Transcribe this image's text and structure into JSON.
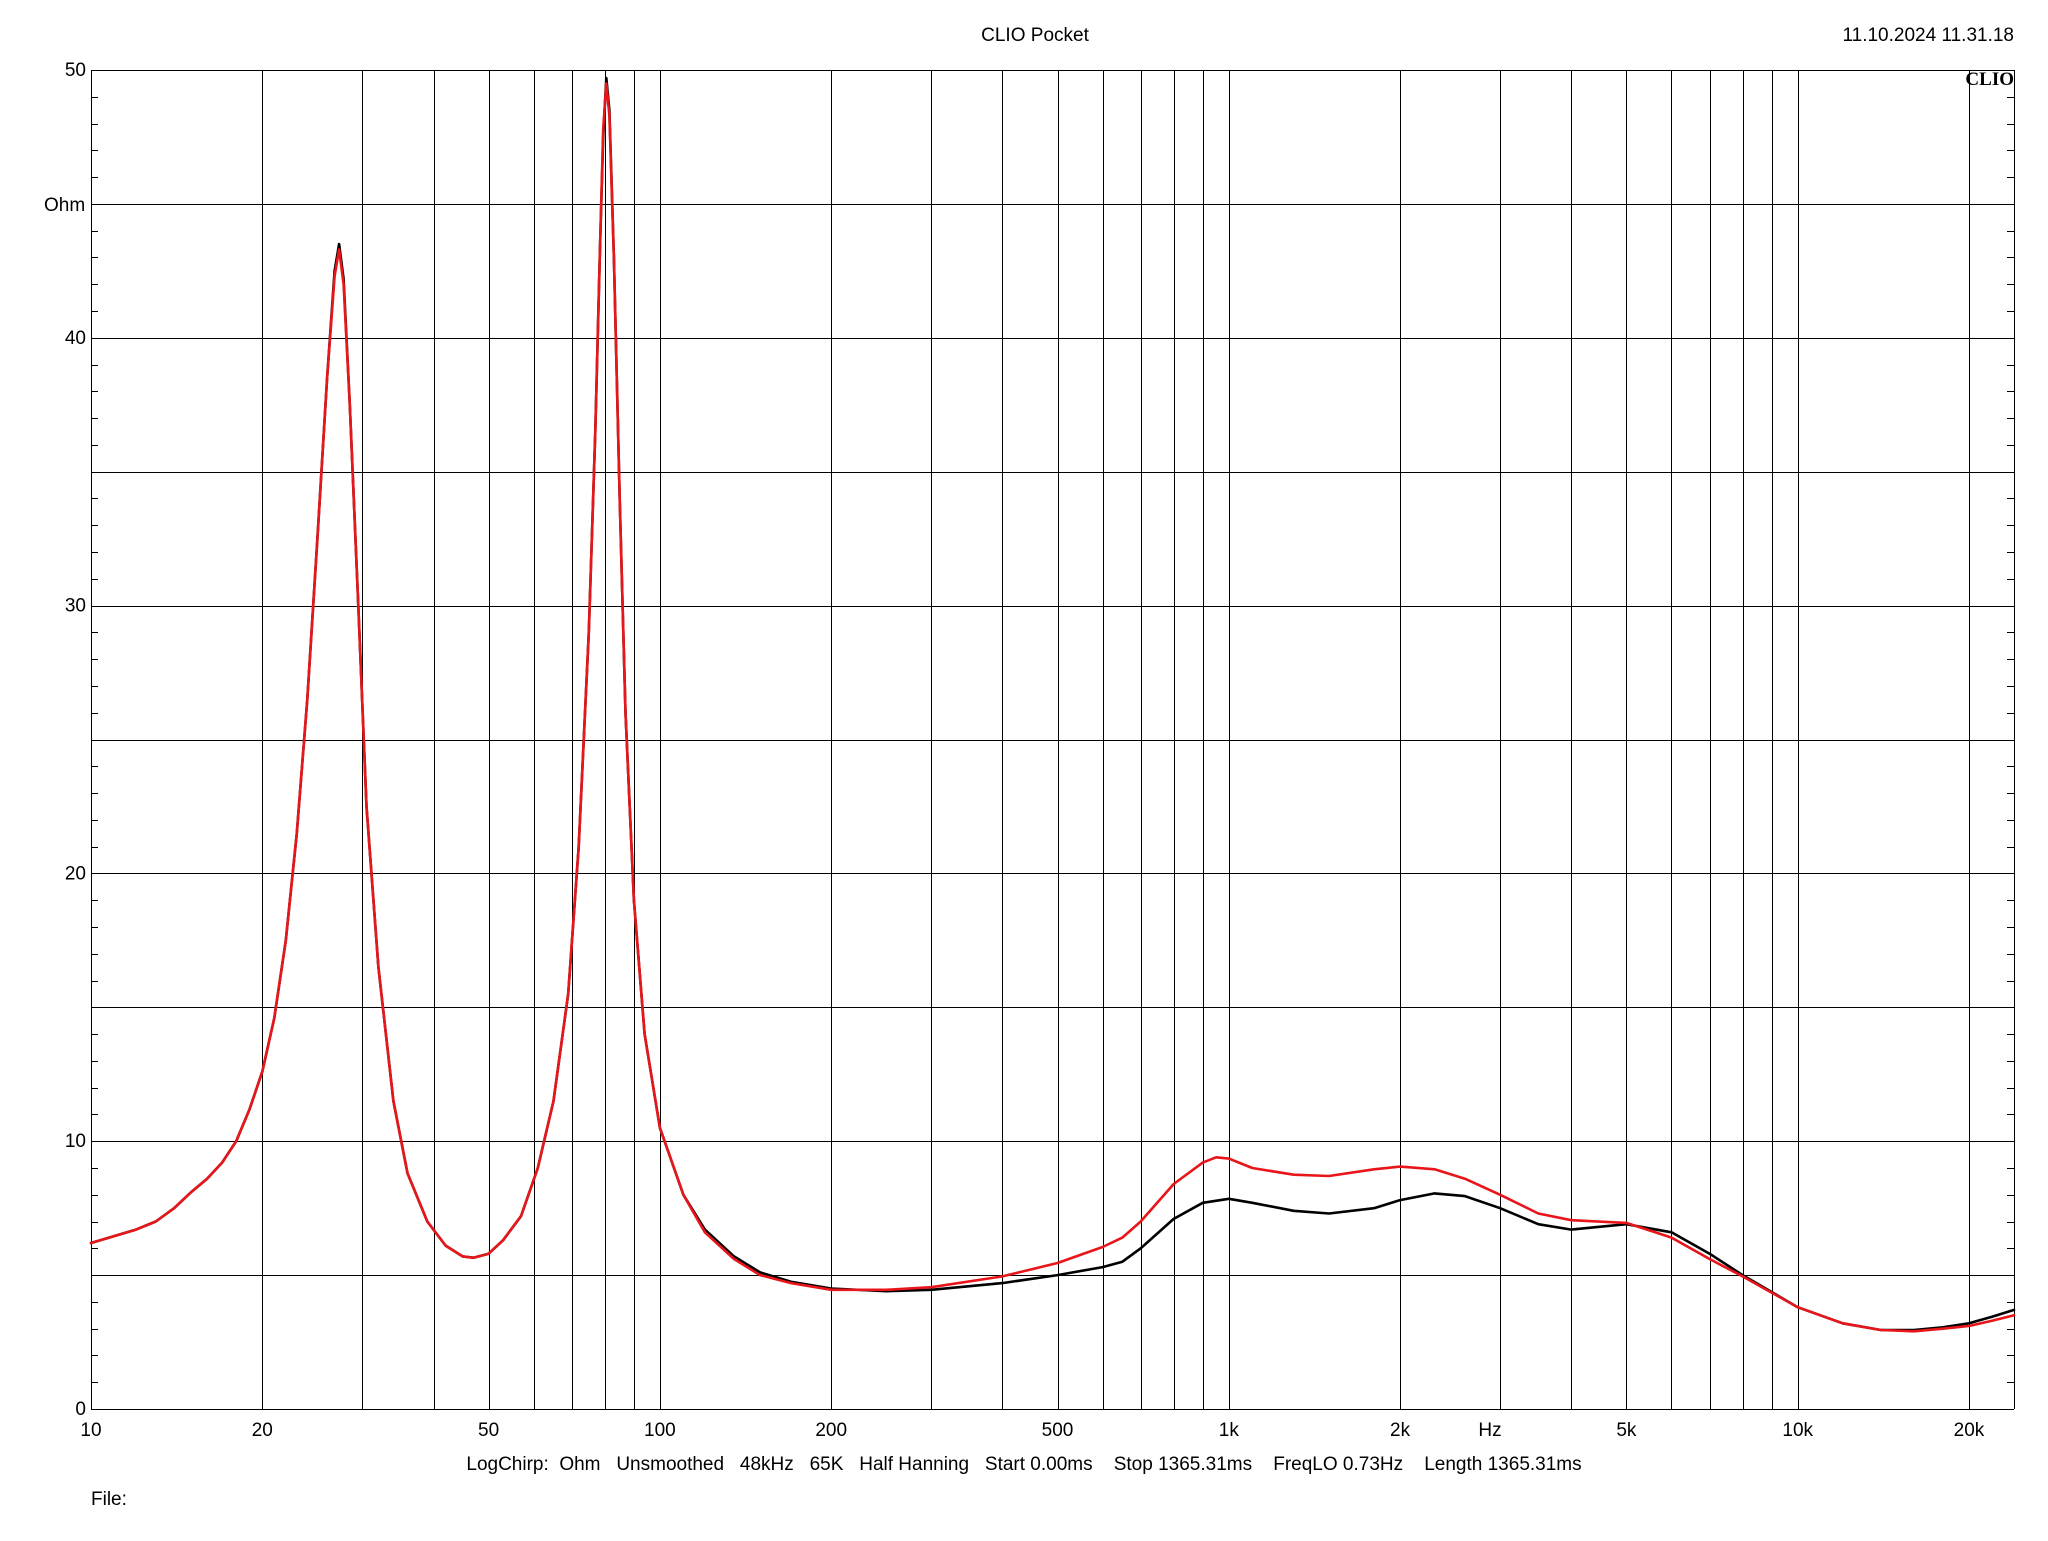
{
  "header": {
    "title": "CLIO Pocket",
    "timestamp": "11.10.2024 11.31.18",
    "brand": "CLIO"
  },
  "footer": {
    "info": "LogChirp:  Ohm   Unsmoothed   48kHz   65K   Half Hanning   Start 0.00ms    Stop 1365.31ms    FreqLO 0.73Hz    Length 1365.31ms",
    "file_label": "File:"
  },
  "colors": {
    "background": "#ffffff",
    "grid": "#000000",
    "series_black": "#000000",
    "series_red": "#e8161a"
  },
  "chart_data": {
    "type": "line",
    "title": "CLIO Pocket",
    "xlabel": "Hz",
    "ylabel": "Ohm",
    "x_scale": "log",
    "xlim": [
      10,
      24000
    ],
    "ylim": [
      0,
      50
    ],
    "grid": true,
    "x_ticks": [
      {
        "value": 10,
        "label": "10"
      },
      {
        "value": 20,
        "label": "20"
      },
      {
        "value": 50,
        "label": "50"
      },
      {
        "value": 100,
        "label": "100"
      },
      {
        "value": 200,
        "label": "200"
      },
      {
        "value": 500,
        "label": "500"
      },
      {
        "value": 1000,
        "label": "1k"
      },
      {
        "value": 2000,
        "label": "2k"
      },
      {
        "value": 5000,
        "label": "5k"
      },
      {
        "value": 10000,
        "label": "10k"
      },
      {
        "value": 20000,
        "label": "20k"
      }
    ],
    "y_ticks": [
      {
        "value": 0,
        "label": "0"
      },
      {
        "value": 10,
        "label": "10"
      },
      {
        "value": 20,
        "label": "20"
      },
      {
        "value": 30,
        "label": "30"
      },
      {
        "value": 40,
        "label": "40"
      },
      {
        "value": 50,
        "label": "50"
      }
    ],
    "series": [
      {
        "color": "#000000",
        "points": [
          [
            10,
            6.2
          ],
          [
            12,
            6.7
          ],
          [
            13,
            7.0
          ],
          [
            14,
            7.5
          ],
          [
            15,
            8.1
          ],
          [
            16,
            8.6
          ],
          [
            17,
            9.2
          ],
          [
            18,
            10.0
          ],
          [
            19,
            11.2
          ],
          [
            20,
            12.6
          ],
          [
            21,
            14.6
          ],
          [
            22,
            17.5
          ],
          [
            23,
            21.5
          ],
          [
            24,
            26.5
          ],
          [
            25,
            32.5
          ],
          [
            26,
            38.5
          ],
          [
            26.8,
            42.5
          ],
          [
            27.3,
            43.5
          ],
          [
            27.8,
            42.2
          ],
          [
            28.5,
            37.5
          ],
          [
            29.5,
            30
          ],
          [
            30.5,
            22.5
          ],
          [
            32,
            16.5
          ],
          [
            34,
            11.5
          ],
          [
            36,
            8.8
          ],
          [
            39,
            7.0
          ],
          [
            42,
            6.1
          ],
          [
            45,
            5.7
          ],
          [
            47,
            5.65
          ],
          [
            50,
            5.8
          ],
          [
            53,
            6.3
          ],
          [
            57,
            7.2
          ],
          [
            61,
            9.0
          ],
          [
            65,
            11.5
          ],
          [
            69,
            15.5
          ],
          [
            72,
            21
          ],
          [
            75,
            29
          ],
          [
            77,
            36.5
          ],
          [
            78.5,
            43.5
          ],
          [
            79.5,
            47.5
          ],
          [
            80.5,
            49.7
          ],
          [
            81.5,
            48.5
          ],
          [
            83,
            43
          ],
          [
            85,
            34
          ],
          [
            87,
            26
          ],
          [
            90,
            19
          ],
          [
            94,
            14
          ],
          [
            100,
            10.5
          ],
          [
            110,
            8.0
          ],
          [
            120,
            6.7
          ],
          [
            135,
            5.7
          ],
          [
            150,
            5.1
          ],
          [
            170,
            4.75
          ],
          [
            200,
            4.5
          ],
          [
            250,
            4.4
          ],
          [
            300,
            4.45
          ],
          [
            400,
            4.7
          ],
          [
            500,
            5.0
          ],
          [
            600,
            5.3
          ],
          [
            650,
            5.5
          ],
          [
            700,
            6.0
          ],
          [
            800,
            7.1
          ],
          [
            900,
            7.7
          ],
          [
            1000,
            7.85
          ],
          [
            1100,
            7.7
          ],
          [
            1300,
            7.4
          ],
          [
            1500,
            7.3
          ],
          [
            1800,
            7.5
          ],
          [
            2000,
            7.8
          ],
          [
            2300,
            8.05
          ],
          [
            2600,
            7.95
          ],
          [
            3000,
            7.5
          ],
          [
            3500,
            6.9
          ],
          [
            4000,
            6.7
          ],
          [
            5000,
            6.9
          ],
          [
            6000,
            6.6
          ],
          [
            7000,
            5.8
          ],
          [
            8000,
            5.0
          ],
          [
            10000,
            3.8
          ],
          [
            12000,
            3.2
          ],
          [
            14000,
            2.95
          ],
          [
            16000,
            2.95
          ],
          [
            18000,
            3.05
          ],
          [
            20000,
            3.2
          ],
          [
            22000,
            3.45
          ],
          [
            24000,
            3.7
          ]
        ]
      },
      {
        "color": "#e8161a",
        "points": [
          [
            10,
            6.2
          ],
          [
            12,
            6.7
          ],
          [
            13,
            7.0
          ],
          [
            14,
            7.5
          ],
          [
            15,
            8.1
          ],
          [
            16,
            8.6
          ],
          [
            17,
            9.2
          ],
          [
            18,
            10.0
          ],
          [
            19,
            11.2
          ],
          [
            20,
            12.6
          ],
          [
            21,
            14.6
          ],
          [
            22,
            17.5
          ],
          [
            23,
            21.5
          ],
          [
            24,
            26.5
          ],
          [
            25,
            32.5
          ],
          [
            26,
            38.5
          ],
          [
            26.8,
            42.3
          ],
          [
            27.3,
            43.3
          ],
          [
            27.8,
            42.0
          ],
          [
            28.5,
            37.5
          ],
          [
            29.5,
            30
          ],
          [
            30.5,
            22.5
          ],
          [
            32,
            16.5
          ],
          [
            34,
            11.5
          ],
          [
            36,
            8.8
          ],
          [
            39,
            7.0
          ],
          [
            42,
            6.1
          ],
          [
            45,
            5.7
          ],
          [
            47,
            5.65
          ],
          [
            50,
            5.8
          ],
          [
            53,
            6.3
          ],
          [
            57,
            7.2
          ],
          [
            61,
            9.0
          ],
          [
            65,
            11.5
          ],
          [
            69,
            15.5
          ],
          [
            72,
            21
          ],
          [
            75,
            29
          ],
          [
            77,
            36.5
          ],
          [
            78.5,
            43.5
          ],
          [
            79.5,
            47.8
          ],
          [
            80.5,
            49.5
          ],
          [
            81.5,
            48.3
          ],
          [
            83,
            43
          ],
          [
            85,
            34
          ],
          [
            87,
            26
          ],
          [
            90,
            19
          ],
          [
            94,
            14
          ],
          [
            100,
            10.5
          ],
          [
            110,
            8.0
          ],
          [
            120,
            6.6
          ],
          [
            135,
            5.6
          ],
          [
            150,
            5.0
          ],
          [
            170,
            4.7
          ],
          [
            200,
            4.45
          ],
          [
            250,
            4.45
          ],
          [
            300,
            4.55
          ],
          [
            400,
            4.95
          ],
          [
            500,
            5.45
          ],
          [
            600,
            6.05
          ],
          [
            650,
            6.4
          ],
          [
            700,
            7.0
          ],
          [
            800,
            8.4
          ],
          [
            900,
            9.2
          ],
          [
            950,
            9.4
          ],
          [
            1000,
            9.35
          ],
          [
            1100,
            9.0
          ],
          [
            1300,
            8.75
          ],
          [
            1500,
            8.7
          ],
          [
            1800,
            8.95
          ],
          [
            2000,
            9.05
          ],
          [
            2300,
            8.95
          ],
          [
            2600,
            8.6
          ],
          [
            3000,
            8.0
          ],
          [
            3500,
            7.3
          ],
          [
            4000,
            7.05
          ],
          [
            5000,
            6.95
          ],
          [
            6000,
            6.4
          ],
          [
            7000,
            5.6
          ],
          [
            8000,
            4.95
          ],
          [
            10000,
            3.8
          ],
          [
            12000,
            3.2
          ],
          [
            14000,
            2.95
          ],
          [
            16000,
            2.9
          ],
          [
            18000,
            3.0
          ],
          [
            20000,
            3.1
          ],
          [
            22000,
            3.3
          ],
          [
            24000,
            3.5
          ]
        ]
      }
    ]
  }
}
